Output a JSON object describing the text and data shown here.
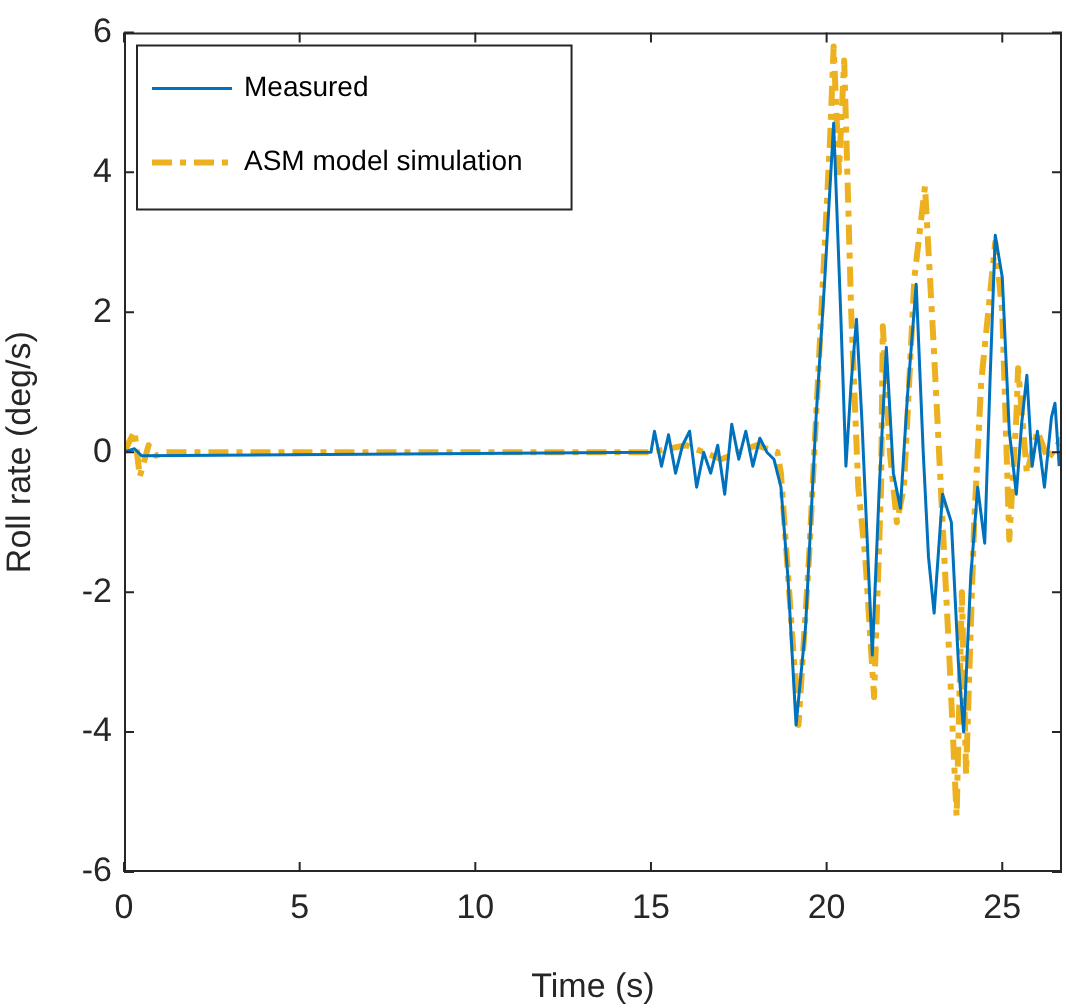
{
  "chart_data": {
    "type": "line",
    "xlabel": "Time (s)",
    "ylabel": "Roll rate (deg/s)",
    "xlim": [
      0,
      26.7
    ],
    "xticks": [
      0,
      5,
      10,
      15,
      20,
      25
    ],
    "ylim": [
      -6,
      6
    ],
    "yticks": [
      -6,
      -4,
      -2,
      0,
      2,
      4,
      6
    ],
    "grid": false,
    "legend": "top left",
    "marker": "none",
    "series": [
      {
        "name": "Measured",
        "color": "#0072bd",
        "line_style": "solid",
        "x": [
          0,
          0.3,
          0.5,
          15,
          15.1,
          15.3,
          15.5,
          15.7,
          15.9,
          16.1,
          16.3,
          16.5,
          16.7,
          16.9,
          17.1,
          17.3,
          17.5,
          17.7,
          17.9,
          18.1,
          18.3,
          18.5,
          18.7,
          18.9,
          19.13,
          19.4,
          19.7,
          19.95,
          20.2,
          20.4,
          20.55,
          20.7,
          20.85,
          21,
          21.3,
          21.5,
          21.7,
          21.9,
          22.1,
          22.3,
          22.55,
          22.75,
          22.9,
          23.06,
          23.3,
          23.55,
          23.75,
          23.9,
          24.1,
          24.3,
          24.5,
          24.65,
          24.8,
          25,
          25.2,
          25.4,
          25.55,
          25.7,
          25.85,
          26,
          26.2,
          26.4,
          26.5,
          26.62
        ],
        "values": [
          0,
          0.05,
          -0.05,
          0,
          0.3,
          -0.2,
          0.25,
          -0.3,
          0.1,
          0.3,
          -0.5,
          0,
          -0.3,
          0.1,
          -0.6,
          0.4,
          -0.1,
          0.3,
          -0.2,
          0.2,
          0,
          -0.1,
          -0.5,
          -1.8,
          -3.9,
          -2.5,
          0.5,
          2.5,
          4.7,
          2,
          -0.2,
          1,
          1.9,
          0.5,
          -2.9,
          -0.5,
          1.5,
          -0.3,
          -0.8,
          0.8,
          2.4,
          0,
          -1.5,
          -2.3,
          -0.6,
          -1,
          -3,
          -4,
          -1.8,
          -0.5,
          -1.3,
          1,
          3.1,
          2.5,
          0.3,
          -0.6,
          0.4,
          1.1,
          -0.2,
          0.3,
          -0.5,
          0.5,
          0.7,
          -0.2
        ]
      },
      {
        "name": "ASM model simulation",
        "color": "#edb120",
        "line_style": "dashed",
        "x": [
          0,
          0.3,
          0.45,
          0.7,
          0.9,
          1.2,
          15,
          16,
          17,
          18,
          18.6,
          18.7,
          19.2,
          19.5,
          19.8,
          20.1,
          20.2,
          20.35,
          20.5,
          20.7,
          20.9,
          21.1,
          21.35,
          21.55,
          21.6,
          21.8,
          22,
          22.2,
          22.5,
          22.8,
          23.05,
          23.3,
          23.5,
          23.7,
          23.85,
          23.97,
          24.2,
          24.4,
          24.6,
          24.8,
          25,
          25.2,
          25.4,
          25.45,
          25.7,
          26,
          26.3,
          26.7
        ],
        "values": [
          0,
          0.3,
          -0.35,
          0.1,
          -0.05,
          0,
          0,
          0.1,
          -0.1,
          0.1,
          0,
          -0.3,
          -3.9,
          -1.5,
          1.5,
          4.5,
          5.8,
          4,
          5.6,
          2,
          -0.5,
          -1.5,
          -3.5,
          -0.5,
          1.8,
          0,
          -1,
          -0.5,
          2.5,
          3.8,
          1.5,
          -1,
          -3,
          -5.2,
          -2,
          -4.6,
          -1,
          1,
          2,
          3,
          2,
          -1.25,
          0.5,
          1.2,
          -0.3,
          0.3,
          -0.1,
          0.2
        ]
      }
    ]
  }
}
